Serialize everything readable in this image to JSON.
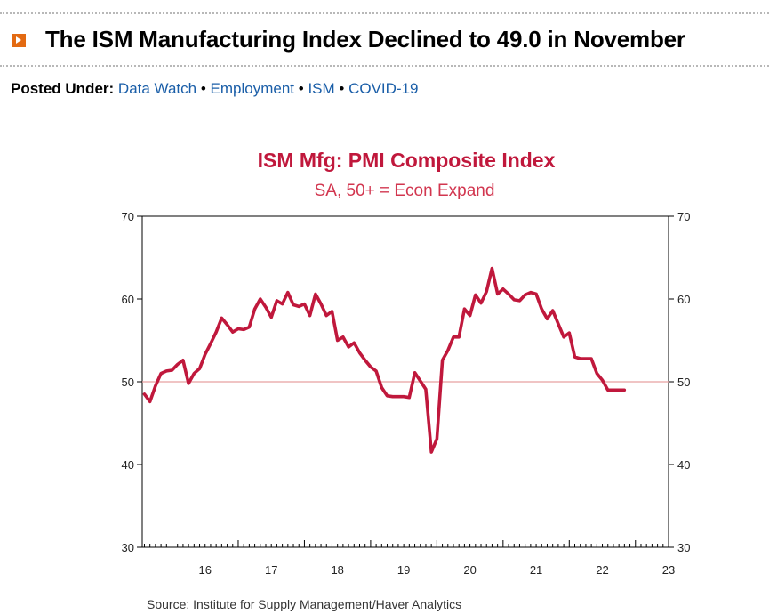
{
  "article": {
    "title": "The ISM Manufacturing Index Declined to 49.0 in November",
    "posted_label": "Posted Under:",
    "tags": [
      "Data Watch",
      "Employment",
      "ISM",
      "COVID-19"
    ],
    "separator": "•"
  },
  "colors": {
    "accent": "#e36a12",
    "link": "#1a5ea8",
    "series": "#c0183c",
    "reference_line": "#e8a0a0"
  },
  "chart_data": {
    "type": "line",
    "title": "ISM Mfg: PMI Composite Index",
    "subtitle": "SA, 50+ = Econ Expand",
    "source": "Source:  Institute for Supply Management/Haver Analytics",
    "ylim": [
      30,
      70
    ],
    "yticks": [
      30,
      40,
      50,
      60,
      70
    ],
    "xlim": [
      2015.55,
      2023.5
    ],
    "xticks": [
      {
        "label": "16",
        "value": 2016.5
      },
      {
        "label": "17",
        "value": 2017.5
      },
      {
        "label": "18",
        "value": 2018.5
      },
      {
        "label": "19",
        "value": 2019.5
      },
      {
        "label": "20",
        "value": 2020.5
      },
      {
        "label": "21",
        "value": 2021.5
      },
      {
        "label": "22",
        "value": 2022.5
      },
      {
        "label": "23",
        "value": 2023.5
      }
    ],
    "reference_line": 50,
    "grid": false,
    "legend": "none",
    "series": [
      {
        "x": [
          2015.583,
          2015.667,
          2015.75,
          2015.833,
          2015.917,
          2016.0,
          2016.083,
          2016.167,
          2016.25,
          2016.333,
          2016.417,
          2016.5,
          2016.583,
          2016.667,
          2016.75,
          2016.833,
          2016.917,
          2017.0,
          2017.083,
          2017.167,
          2017.25,
          2017.333,
          2017.417,
          2017.5,
          2017.583,
          2017.667,
          2017.75,
          2017.833,
          2017.917,
          2018.0,
          2018.083,
          2018.167,
          2018.25,
          2018.333,
          2018.417,
          2018.5,
          2018.583,
          2018.667,
          2018.75,
          2018.833,
          2018.917,
          2019.0,
          2019.083,
          2019.167,
          2019.25,
          2019.333,
          2019.417,
          2019.5,
          2019.583,
          2019.667,
          2019.75,
          2019.833,
          2019.917,
          2020.0,
          2020.083,
          2020.167,
          2020.25,
          2020.333,
          2020.417,
          2020.5,
          2020.583,
          2020.667,
          2020.75,
          2020.833,
          2020.917,
          2021.0,
          2021.083,
          2021.167,
          2021.25,
          2021.333,
          2021.417,
          2021.5,
          2021.583,
          2021.667,
          2021.75,
          2021.833,
          2021.917,
          2022.0,
          2022.083,
          2022.167,
          2022.25,
          2022.333,
          2022.417,
          2022.5,
          2022.583,
          2022.667,
          2022.75,
          2022.833
        ],
        "y": [
          48.5,
          47.6,
          49.5,
          51.0,
          51.3,
          51.4,
          52.1,
          52.6,
          49.8,
          51.0,
          51.6,
          53.3,
          54.6,
          56.0,
          57.7,
          56.9,
          56.0,
          56.4,
          56.3,
          56.6,
          58.8,
          60.0,
          59.0,
          57.8,
          59.8,
          59.4,
          60.8,
          59.3,
          59.1,
          59.4,
          58.0,
          60.6,
          59.4,
          58.0,
          58.5,
          55.0,
          55.4,
          54.2,
          54.7,
          53.5,
          52.6,
          51.8,
          51.3,
          49.3,
          48.3,
          48.2,
          48.2,
          48.2,
          48.1,
          51.1,
          50.1,
          49.1,
          41.5,
          43.1,
          52.6,
          53.8,
          55.4,
          55.4,
          58.8,
          58.0,
          60.5,
          59.5,
          60.9,
          63.7,
          60.6,
          61.2,
          60.6,
          59.9,
          59.8,
          60.5,
          60.8,
          60.6,
          58.8,
          57.6,
          58.6,
          57.0,
          55.4,
          55.9,
          53.0,
          52.8,
          52.8,
          52.8,
          51.0,
          50.2,
          49.0,
          49.0,
          49.0,
          49.0
        ]
      }
    ]
  }
}
